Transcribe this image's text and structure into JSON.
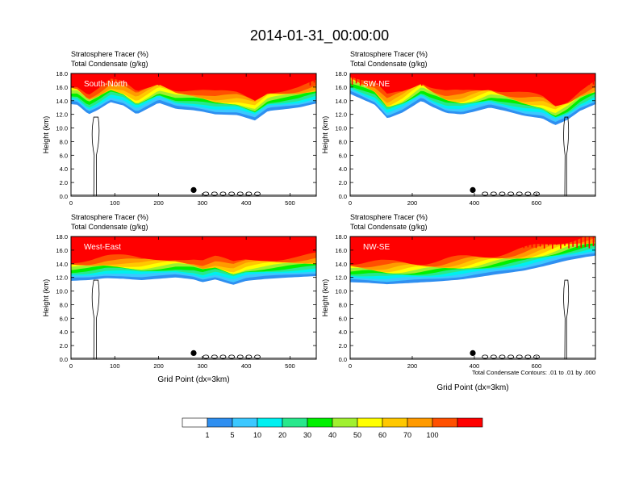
{
  "figure_title": "2014-01-31_00:00:00",
  "colors": {
    "levels": [
      "#ffffff",
      "#2f8ff0",
      "#3cc8ff",
      "#00f0f0",
      "#28e88c",
      "#00f000",
      "#a0f030",
      "#ffff00",
      "#ffc800",
      "#ff9a00",
      "#ff5000",
      "#ff0000"
    ]
  },
  "colorbar": {
    "labels": [
      "1",
      "5",
      "10",
      "20",
      "30",
      "40",
      "50",
      "60",
      "70",
      "100"
    ]
  },
  "contour_note": "Total Condensate Contours: .01 to .01 by .000",
  "chart_data": [
    {
      "type": "heatmap",
      "title_line1": "Stratosphere Tracer   (%)",
      "title_line2": "Total Condensate   (g/kg)",
      "label": "South-North",
      "ylabel": "Height (km)",
      "xlabel": "",
      "xlim": [
        0,
        560
      ],
      "xticks": [
        0,
        100,
        200,
        300,
        400,
        500
      ],
      "ylim": [
        0,
        18
      ],
      "yticks": [
        "0.0",
        "2.0",
        "4.0",
        "6.0",
        "8.0",
        "10.0",
        "12.0",
        "14.0",
        "16.0",
        "18.0"
      ],
      "marker_x": 280,
      "tracer_base_km": [
        [
          0,
          13.5
        ],
        [
          15,
          13.4
        ],
        [
          40,
          12.0
        ],
        [
          60,
          12.6
        ],
        [
          90,
          13.8
        ],
        [
          120,
          13.3
        ],
        [
          150,
          12.0
        ],
        [
          180,
          13.0
        ],
        [
          200,
          13.7
        ],
        [
          240,
          12.8
        ],
        [
          280,
          12.6
        ],
        [
          300,
          12.4
        ],
        [
          330,
          12.0
        ],
        [
          380,
          11.9
        ],
        [
          420,
          11.1
        ],
        [
          450,
          12.5
        ],
        [
          480,
          12.7
        ],
        [
          520,
          13.0
        ],
        [
          560,
          13.6
        ]
      ]
    },
    {
      "type": "heatmap",
      "title_line1": "Stratosphere Tracer   (%)",
      "title_line2": "Total Condensate   (g/kg)",
      "label": "SW-NE",
      "ylabel": "Height (km)",
      "xlabel": "",
      "xlim": [
        0,
        790
      ],
      "xticks": [
        0,
        200,
        400,
        600
      ],
      "ylim": [
        0,
        18
      ],
      "yticks": [
        "0.0",
        "2.0",
        "4.0",
        "6.0",
        "8.0",
        "10.0",
        "12.0",
        "14.0",
        "16.0",
        "18.0"
      ],
      "marker_x": 395,
      "tracer_base_km": [
        [
          0,
          15.0
        ],
        [
          40,
          14.2
        ],
        [
          80,
          13.4
        ],
        [
          120,
          11.4
        ],
        [
          170,
          12.3
        ],
        [
          230,
          14.0
        ],
        [
          260,
          13.2
        ],
        [
          310,
          12.2
        ],
        [
          360,
          12.0
        ],
        [
          400,
          12.4
        ],
        [
          450,
          13.0
        ],
        [
          500,
          12.5
        ],
        [
          560,
          11.8
        ],
        [
          620,
          11.4
        ],
        [
          660,
          10.4
        ],
        [
          700,
          11.2
        ],
        [
          740,
          12.5
        ],
        [
          790,
          13.5
        ]
      ]
    },
    {
      "type": "heatmap",
      "title_line1": "Stratosphere Tracer   (%)",
      "title_line2": "Total Condensate   (g/kg)",
      "label": "West-East",
      "ylabel": "Height (km)",
      "xlabel": "Grid Point (dx=3km)",
      "xlim": [
        0,
        560
      ],
      "xticks": [
        0,
        100,
        200,
        300,
        400,
        500
      ],
      "ylim": [
        0,
        18
      ],
      "yticks": [
        "0.0",
        "2.0",
        "4.0",
        "6.0",
        "8.0",
        "10.0",
        "12.0",
        "14.0",
        "16.0",
        "18.0"
      ],
      "marker_x": 280,
      "tracer_base_km": [
        [
          0,
          11.5
        ],
        [
          40,
          11.6
        ],
        [
          80,
          11.9
        ],
        [
          120,
          11.8
        ],
        [
          160,
          11.6
        ],
        [
          200,
          11.8
        ],
        [
          240,
          12.0
        ],
        [
          280,
          11.7
        ],
        [
          300,
          11.3
        ],
        [
          330,
          11.7
        ],
        [
          370,
          10.9
        ],
        [
          400,
          11.5
        ],
        [
          450,
          11.8
        ],
        [
          500,
          12.0
        ],
        [
          560,
          12.2
        ]
      ]
    },
    {
      "type": "heatmap",
      "title_line1": "Stratosphere Tracer   (%)",
      "title_line2": "Total Condensate   (g/kg)",
      "label": "NW-SE",
      "ylabel": "Height (km)",
      "xlabel": "Grid Point (dx=3km)",
      "xlim": [
        0,
        790
      ],
      "xticks": [
        0,
        200,
        400,
        600
      ],
      "ylim": [
        0,
        18
      ],
      "yticks": [
        "0.0",
        "2.0",
        "4.0",
        "6.0",
        "8.0",
        "10.0",
        "12.0",
        "14.0",
        "16.0",
        "18.0"
      ],
      "marker_x": 395,
      "tracer_base_km": [
        [
          0,
          11.3
        ],
        [
          60,
          11.2
        ],
        [
          120,
          11.0
        ],
        [
          200,
          11.2
        ],
        [
          280,
          11.4
        ],
        [
          360,
          11.7
        ],
        [
          420,
          12.1
        ],
        [
          480,
          12.5
        ],
        [
          560,
          13.0
        ],
        [
          620,
          13.6
        ],
        [
          700,
          14.5
        ],
        [
          760,
          15.0
        ],
        [
          790,
          15.2
        ]
      ]
    }
  ]
}
